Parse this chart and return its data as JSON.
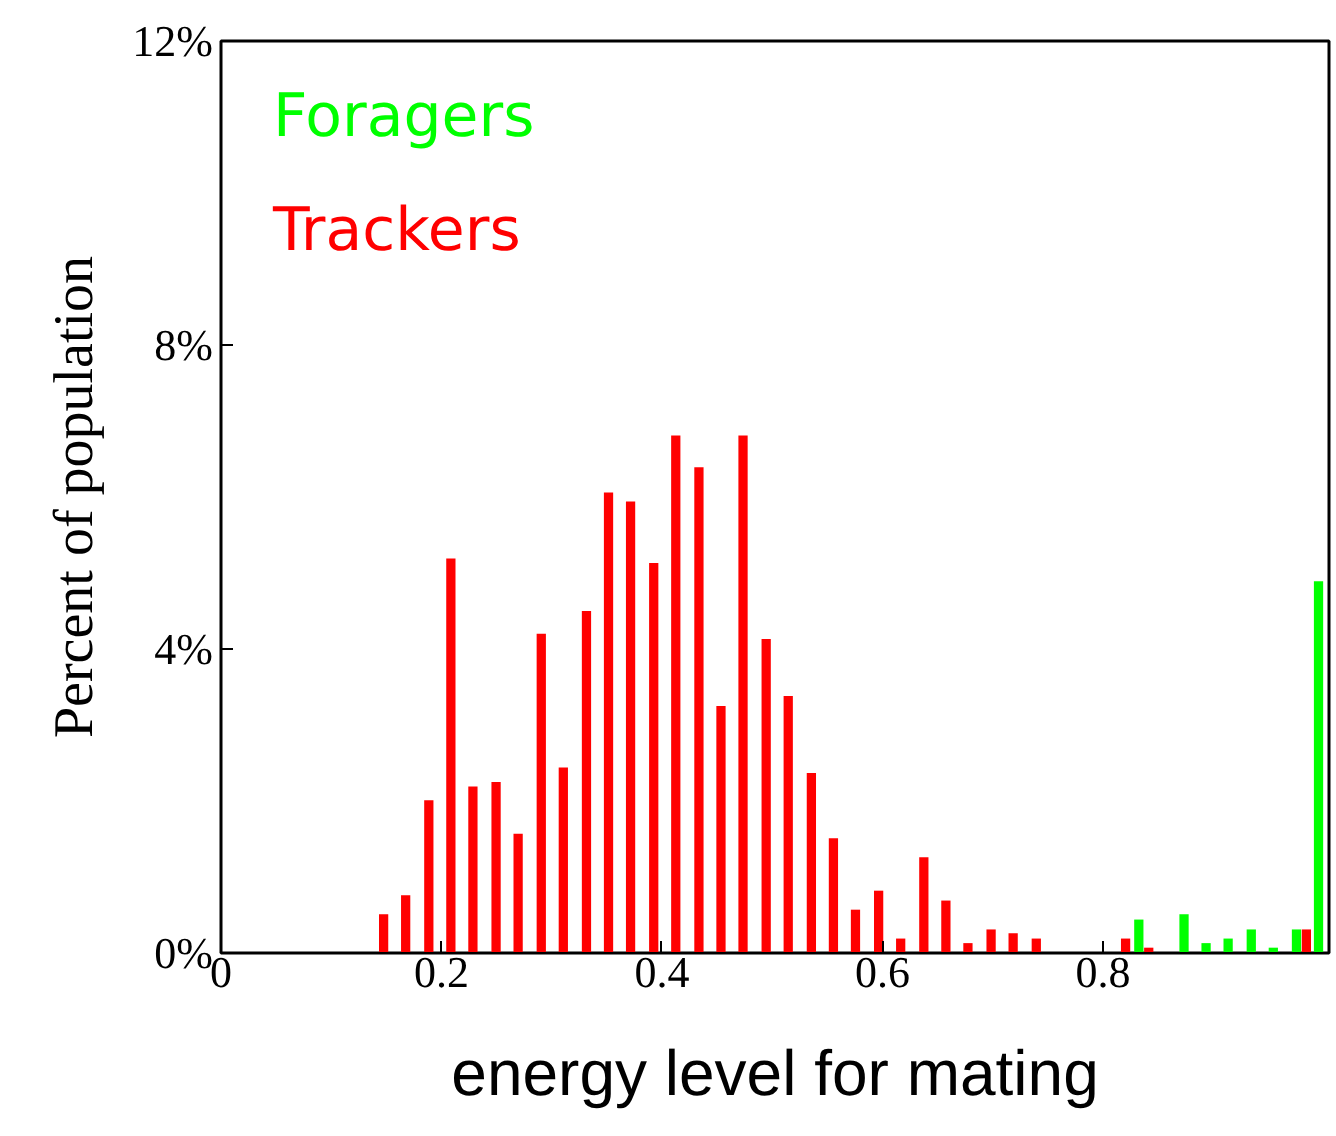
{
  "chart_data": {
    "type": "bar",
    "xlabel": "energy level for mating",
    "ylabel": "Percent of population",
    "x": [
      0,
      0.02,
      0.041,
      0.061,
      0.082,
      0.102,
      0.122,
      0.143,
      0.163,
      0.184,
      0.204,
      0.224,
      0.245,
      0.265,
      0.286,
      0.306,
      0.327,
      0.347,
      0.367,
      0.388,
      0.408,
      0.429,
      0.449,
      0.469,
      0.49,
      0.51,
      0.531,
      0.551,
      0.571,
      0.592,
      0.612,
      0.633,
      0.653,
      0.673,
      0.694,
      0.714,
      0.735,
      0.755,
      0.776,
      0.796,
      0.816,
      0.837,
      0.857,
      0.878,
      0.898,
      0.918,
      0.939,
      0.959,
      0.98,
      1.0
    ],
    "series": [
      {
        "name": "Foragers",
        "color": "#00ff00",
        "x": [
          0.837,
          0.878,
          0.898,
          0.918,
          0.939,
          0.959,
          0.98,
          1.0
        ],
        "values": [
          0.44,
          0.51,
          0.13,
          0.19,
          0.31,
          0.07,
          0.31,
          4.89
        ]
      },
      {
        "name": "Trackers",
        "color": "#ff0000",
        "values": [
          0,
          0,
          0,
          0,
          0,
          0,
          0,
          0.51,
          0.76,
          2.01,
          5.19,
          2.19,
          2.25,
          1.57,
          4.2,
          2.44,
          4.5,
          6.06,
          5.94,
          5.13,
          6.81,
          6.39,
          3.25,
          6.81,
          4.13,
          3.38,
          2.37,
          1.51,
          0.57,
          0.82,
          0.19,
          1.26,
          0.69,
          0.13,
          0.31,
          0.26,
          0.19,
          0,
          0,
          0,
          0.19,
          0.07,
          0,
          0,
          0,
          0,
          0,
          0,
          0.31,
          0
        ]
      }
    ],
    "xlim": [
      0,
      1.005
    ],
    "xticks": [
      0,
      0.2,
      0.4,
      0.6,
      0.8
    ],
    "ylim": [
      0,
      12
    ],
    "yticks": [
      {
        "value": 0,
        "label": "0%"
      },
      {
        "value": 4,
        "label": "4%"
      },
      {
        "value": 8,
        "label": "8%"
      },
      {
        "value": 12,
        "label": "12%"
      }
    ],
    "grid": false,
    "legend": "top left"
  }
}
